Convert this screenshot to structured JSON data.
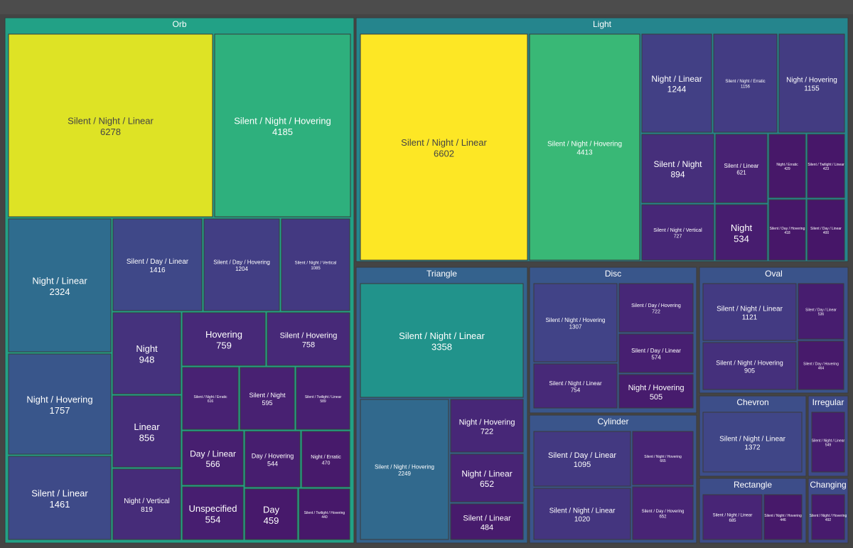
{
  "chart_data": {
    "type": "treemap",
    "groups": [
      {
        "name": "Orb",
        "children": [
          {
            "label": "Silent / Night / Linear",
            "value": 6278
          },
          {
            "label": "Silent / Night / Hovering",
            "value": 4185
          },
          {
            "label": "Night / Linear",
            "value": 2324
          },
          {
            "label": "Night / Hovering",
            "value": 1757
          },
          {
            "label": "Silent / Linear",
            "value": 1461
          },
          {
            "label": "Silent / Day / Linear",
            "value": 1416
          },
          {
            "label": "Silent / Day / Hovering",
            "value": 1204
          },
          {
            "label": "Silent / Night / Vertical",
            "value": 1085
          },
          {
            "label": "Night",
            "value": 948
          },
          {
            "label": "Linear",
            "value": 856
          },
          {
            "label": "Night / Vertical",
            "value": 819
          },
          {
            "label": "Hovering",
            "value": 759
          },
          {
            "label": "Silent / Hovering",
            "value": 758
          },
          {
            "label": "Silent / Night / Erratic",
            "value": 616
          },
          {
            "label": "Silent / Night",
            "value": 595
          },
          {
            "label": "Silent / Twilight / Linear",
            "value": 589
          },
          {
            "label": "Day / Linear",
            "value": 566
          },
          {
            "label": "Day / Hovering",
            "value": 544
          },
          {
            "label": "Night / Erratic",
            "value": 470
          },
          {
            "label": "Unspecified",
            "value": 554
          },
          {
            "label": "Day",
            "value": 459
          },
          {
            "label": "Silent / Twilight / Hovering",
            "value": 440
          }
        ]
      },
      {
        "name": "Light",
        "children": [
          {
            "label": "Silent / Night / Linear",
            "value": 6602
          },
          {
            "label": "Silent / Night / Hovering",
            "value": 4413
          },
          {
            "label": "Night / Linear",
            "value": 1244
          },
          {
            "label": "Silent / Night / Erratic",
            "value": 1156
          },
          {
            "label": "Night / Hovering",
            "value": 1155
          },
          {
            "label": "Silent / Night",
            "value": 894
          },
          {
            "label": "Silent / Linear",
            "value": 621
          },
          {
            "label": "Night / Erratic",
            "value": 429
          },
          {
            "label": "Silent / Twilight / Linear",
            "value": 423
          },
          {
            "label": "Silent / Night / Vertical",
            "value": 727
          },
          {
            "label": "Night",
            "value": 534
          },
          {
            "label": "Silent / Day / Hovering",
            "value": 418
          },
          {
            "label": "Silent / Day / Linear",
            "value": 400
          }
        ]
      },
      {
        "name": "Triangle",
        "children": [
          {
            "label": "Silent / Night / Linear",
            "value": 3358
          },
          {
            "label": "Silent / Night / Hovering",
            "value": 2249
          },
          {
            "label": "Night / Hovering",
            "value": 722
          },
          {
            "label": "Night / Linear",
            "value": 652
          },
          {
            "label": "Silent / Linear",
            "value": 484
          }
        ]
      },
      {
        "name": "Disc",
        "children": [
          {
            "label": "Silent / Night / Hovering",
            "value": 1307
          },
          {
            "label": "Silent / Day / Hovering",
            "value": 722
          },
          {
            "label": "Silent / Day / Linear",
            "value": 574
          },
          {
            "label": "Silent / Night / Linear",
            "value": 754
          },
          {
            "label": "Night / Hovering",
            "value": 505
          }
        ]
      },
      {
        "name": "Oval",
        "children": [
          {
            "label": "Silent / Night / Linear",
            "value": 1121
          },
          {
            "label": "Silent / Day / Linear",
            "value": 536
          },
          {
            "label": "Silent / Night / Hovering",
            "value": 905
          },
          {
            "label": "Silent / Day / Hovering",
            "value": 464
          }
        ]
      },
      {
        "name": "Cylinder",
        "children": [
          {
            "label": "Silent / Day / Linear",
            "value": 1095
          },
          {
            "label": "Silent / Night / Hovering",
            "value": 665
          },
          {
            "label": "Silent / Night / Linear",
            "value": 1020
          },
          {
            "label": "Silent / Day / Hovering",
            "value": 652
          }
        ]
      },
      {
        "name": "Chevron",
        "children": [
          {
            "label": "Silent / Night / Linear",
            "value": 1372
          }
        ]
      },
      {
        "name": "Irregular",
        "children": [
          {
            "label": "Silent / Night / Linear",
            "value": 549
          }
        ]
      },
      {
        "name": "Rectangle",
        "children": [
          {
            "label": "Silent / Night / Linear",
            "value": 685
          },
          {
            "label": "Silent / Night / Hovering",
            "value": 446
          }
        ]
      },
      {
        "name": "Changing",
        "children": [
          {
            "label": "Silent / Night / Hovering",
            "value": 492
          }
        ]
      }
    ],
    "colorscale": "viridis",
    "colors": {
      "background": "#444444",
      "border": "#3a3a3a"
    }
  }
}
